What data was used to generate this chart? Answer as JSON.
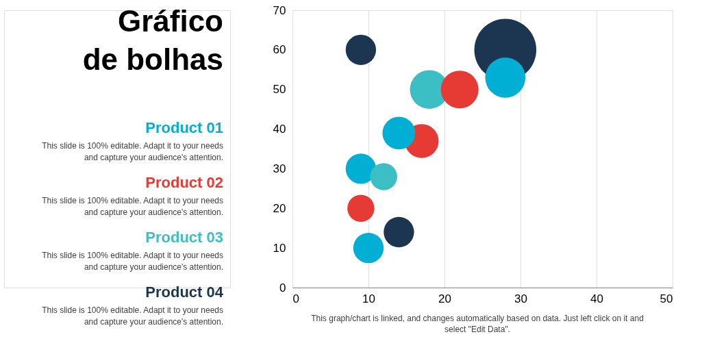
{
  "chart_data": {
    "type": "bubble",
    "title": "Gráfico\nde bolhas",
    "series": [
      {
        "name": "Product 01",
        "color": "#00afd3",
        "x": [
          28,
          14,
          9,
          10
        ],
        "values": [
          53,
          39,
          30,
          10
        ],
        "sizes": [
          0.42,
          0.28,
          0.24,
          0.24
        ]
      },
      {
        "name": "Product 02",
        "color": "#e63a35",
        "x": [
          22,
          17,
          9
        ],
        "values": [
          50,
          37,
          20
        ],
        "sizes": [
          0.37,
          0.3,
          0.19
        ]
      },
      {
        "name": "Product 03",
        "color": "#3bbec4",
        "x": [
          18,
          12
        ],
        "values": [
          50,
          28
        ],
        "sizes": [
          0.39,
          0.19
        ]
      },
      {
        "name": "Product 04",
        "color": "#1c3551",
        "x": [
          28,
          9,
          14
        ],
        "values": [
          60,
          60,
          14
        ],
        "sizes": [
          1,
          0.24,
          0.24
        ]
      }
    ],
    "xlim": [
      0,
      50
    ],
    "xticks": [
      0,
      10,
      20,
      30,
      40,
      50
    ],
    "ylim": [
      0,
      70
    ],
    "yticks": [
      0,
      10,
      20,
      30,
      40,
      50,
      60,
      70
    ],
    "grid": "x",
    "legend": "left",
    "annotations": [
      "This slide is 100% editable. Adapt it to your needs and capture your audience's attention.",
      "This slide is 100% editable. Adapt it to your needs and capture your audience's attention.",
      "This slide is 100% editable. Adapt it to your needs and capture your audience's attention.",
      "This slide is 100% editable. Adapt it to your needs and capture your audience's attention.",
      "This graph/chart is linked, and changes automatically based on data. Just left click on it and select \"Edit Data\"."
    ]
  }
}
